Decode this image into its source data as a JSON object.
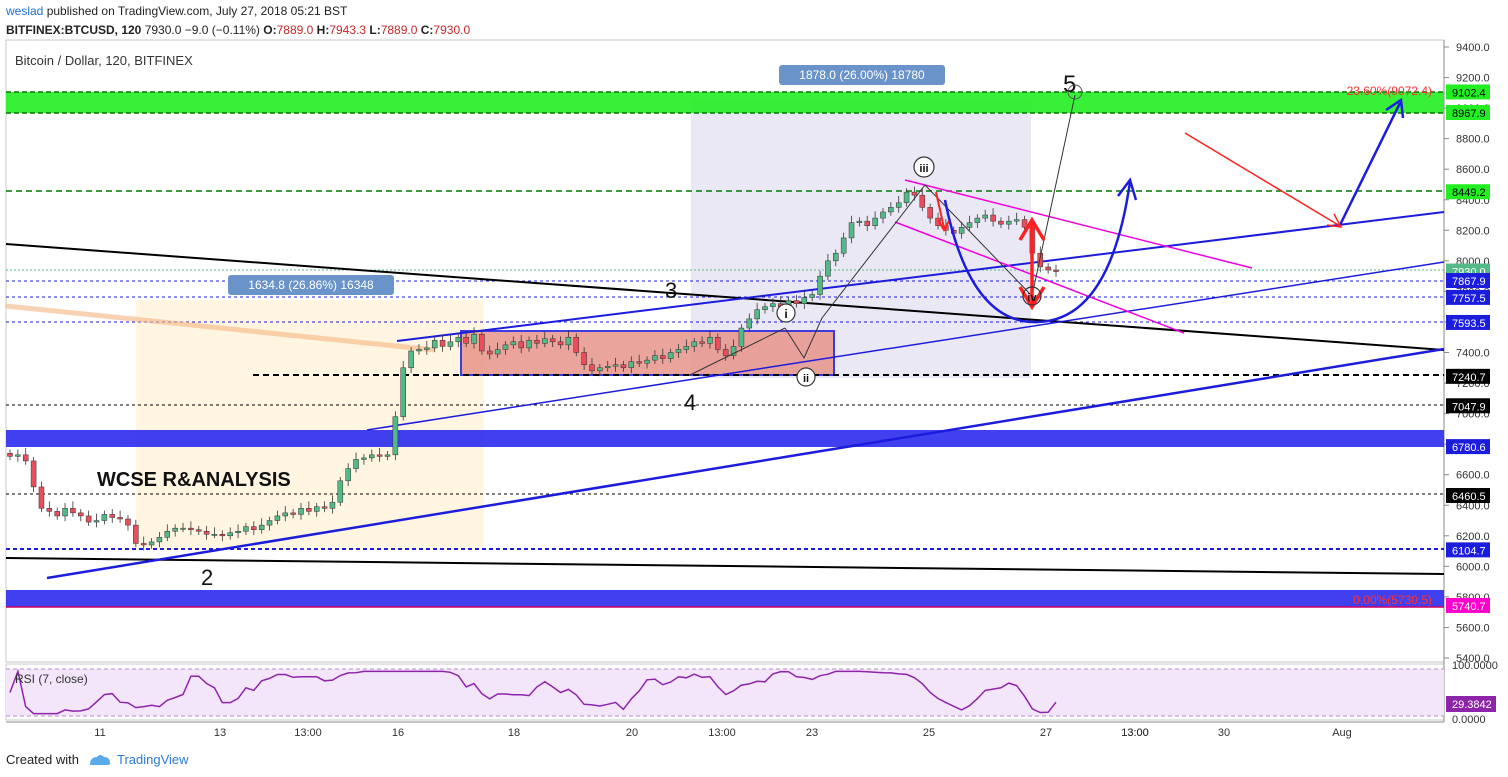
{
  "header": {
    "author": "weslad",
    "published_text": "published on TradingView.com, July 27, 2018 05:21 BST",
    "symbol": "BITFINEX:BTCUSD, 120",
    "last": "7930.0",
    "change": "−9.0 (−0.11%)",
    "o_label": "O:",
    "o": "7889.0",
    "h_label": "H:",
    "h": "7943.3",
    "l_label": "L:",
    "l": "7889.0",
    "c_label": "C:",
    "c": "7930.0"
  },
  "chart_title": "Bitcoin / Dollar, 120, BITFINEX",
  "watermark": "WCSE R&ANALYSIS",
  "footer": {
    "created_with": "Created with",
    "brand": "TradingView"
  },
  "colors": {
    "up": "#53b987",
    "down": "#eb4d5c",
    "support_box": "#2b2bf0",
    "resistance_box": "#22ee22",
    "trend_blue": "#1c1cdc",
    "channel_magenta": "#f000e0",
    "arrow_red": "#ff2020",
    "rsi_bg": "#f3e6fb",
    "rsi_line": "#8e24aa"
  },
  "chart_data": [
    {
      "type": "candlestick",
      "title": "Bitcoin / Dollar, 120, BITFINEX",
      "y_axis": {
        "ticks": [
          "9400.0",
          "9200.0",
          "9000.0",
          "8800.0",
          "8600.0",
          "8400.0",
          "8200.0",
          "8000.0",
          "7800.0",
          "7600.0",
          "7400.0",
          "7200.0",
          "7000.0",
          "6800.0",
          "6600.0",
          "6400.0",
          "6200.0",
          "6000.0",
          "5800.0",
          "5600.0",
          "5400.0"
        ],
        "range": [
          5400,
          9450
        ]
      },
      "x_axis": {
        "ticks": [
          "11",
          "13",
          "13:00",
          "16",
          "18",
          "20",
          "13:00",
          "23",
          "25",
          "13:00",
          "27",
          "13:00",
          "30",
          "Aug"
        ]
      },
      "price_labels": [
        {
          "text": "9102.4",
          "value": 9102.4,
          "bg": "#22ee22",
          "fg": "#000000"
        },
        {
          "text": "8967.9",
          "value": 8967.9,
          "bg": "#22ee22",
          "fg": "#000000"
        },
        {
          "text": "8449.2",
          "value": 8449.2,
          "bg": "#22ee22",
          "fg": "#000000"
        },
        {
          "text": "7930.0",
          "value": 7930.0,
          "bg": "#53b987",
          "fg": "#ffffff"
        },
        {
          "text": "7867.9",
          "value": 7867.9,
          "bg": "#1c1cdc",
          "fg": "#ffffff"
        },
        {
          "text": "7757.5",
          "value": 7757.5,
          "bg": "#1c1cdc",
          "fg": "#ffffff"
        },
        {
          "text": "7593.5",
          "value": 7593.5,
          "bg": "#1c1cdc",
          "fg": "#ffffff"
        },
        {
          "text": "7240.7",
          "value": 7240.7,
          "bg": "#000000",
          "fg": "#ffffff"
        },
        {
          "text": "7047.9",
          "value": 7047.9,
          "bg": "#000000",
          "fg": "#ffffff"
        },
        {
          "text": "6780.6",
          "value": 6780.6,
          "bg": "#1c1cdc",
          "fg": "#ffffff"
        },
        {
          "text": "6460.5",
          "value": 6460.5,
          "bg": "#000000",
          "fg": "#ffffff"
        },
        {
          "text": "6104.7",
          "value": 6104.7,
          "bg": "#1c1cdc",
          "fg": "#ffffff"
        },
        {
          "text": "5740.7",
          "value": 5740.7,
          "bg": "#ff00cc",
          "fg": "#ffffff"
        }
      ],
      "close_series": [
        6720,
        6730,
        6690,
        6520,
        6380,
        6360,
        6330,
        6380,
        6350,
        6330,
        6290,
        6300,
        6340,
        6320,
        6310,
        6270,
        6150,
        6140,
        6160,
        6190,
        6230,
        6250,
        6250,
        6240,
        6230,
        6210,
        6210,
        6200,
        6220,
        6230,
        6260,
        6240,
        6270,
        6300,
        6330,
        6350,
        6340,
        6380,
        6360,
        6390,
        6380,
        6420,
        6560,
        6640,
        6700,
        6710,
        6730,
        6720,
        6730,
        6980,
        7300,
        7410,
        7420,
        7430,
        7480,
        7440,
        7470,
        7500,
        7460,
        7520,
        7410,
        7390,
        7420,
        7450,
        7470,
        7430,
        7480,
        7460,
        7490,
        7470,
        7450,
        7500,
        7400,
        7320,
        7280,
        7300,
        7310,
        7320,
        7300,
        7340,
        7330,
        7350,
        7380,
        7360,
        7400,
        7420,
        7440,
        7470,
        7460,
        7500,
        7420,
        7380,
        7440,
        7560,
        7620,
        7680,
        7700,
        7720,
        7700,
        7740,
        7720,
        7760,
        7780,
        7900,
        8000,
        8050,
        8150,
        8250,
        8260,
        8230,
        8280,
        8320,
        8350,
        8380,
        8450,
        8430,
        8350,
        8280,
        8230,
        8200,
        8180,
        8220,
        8250,
        8280,
        8300,
        8260,
        8240,
        8260,
        8270,
        8220,
        8050,
        7960,
        7940,
        7930
      ],
      "fib_labels": [
        {
          "text": "23.60%(9072.4)",
          "value": 9072.4
        },
        {
          "text": "0.00%(5730.5)",
          "value": 5730.5
        }
      ],
      "measure_labels": [
        "1878.0 (26.00%) 18780",
        "1634.8 (26.86%) 16348"
      ],
      "wave_labels": [
        "5",
        "3",
        "4",
        "2",
        "i",
        "ii",
        "iii",
        "iv"
      ]
    },
    {
      "type": "line",
      "title": "RSI (7, close)",
      "y_axis": {
        "ticks": [
          "100.0000",
          "0.0000"
        ],
        "range": [
          0,
          100
        ]
      },
      "current_value_text": "29.3842",
      "current_value": 29.3842
    }
  ]
}
